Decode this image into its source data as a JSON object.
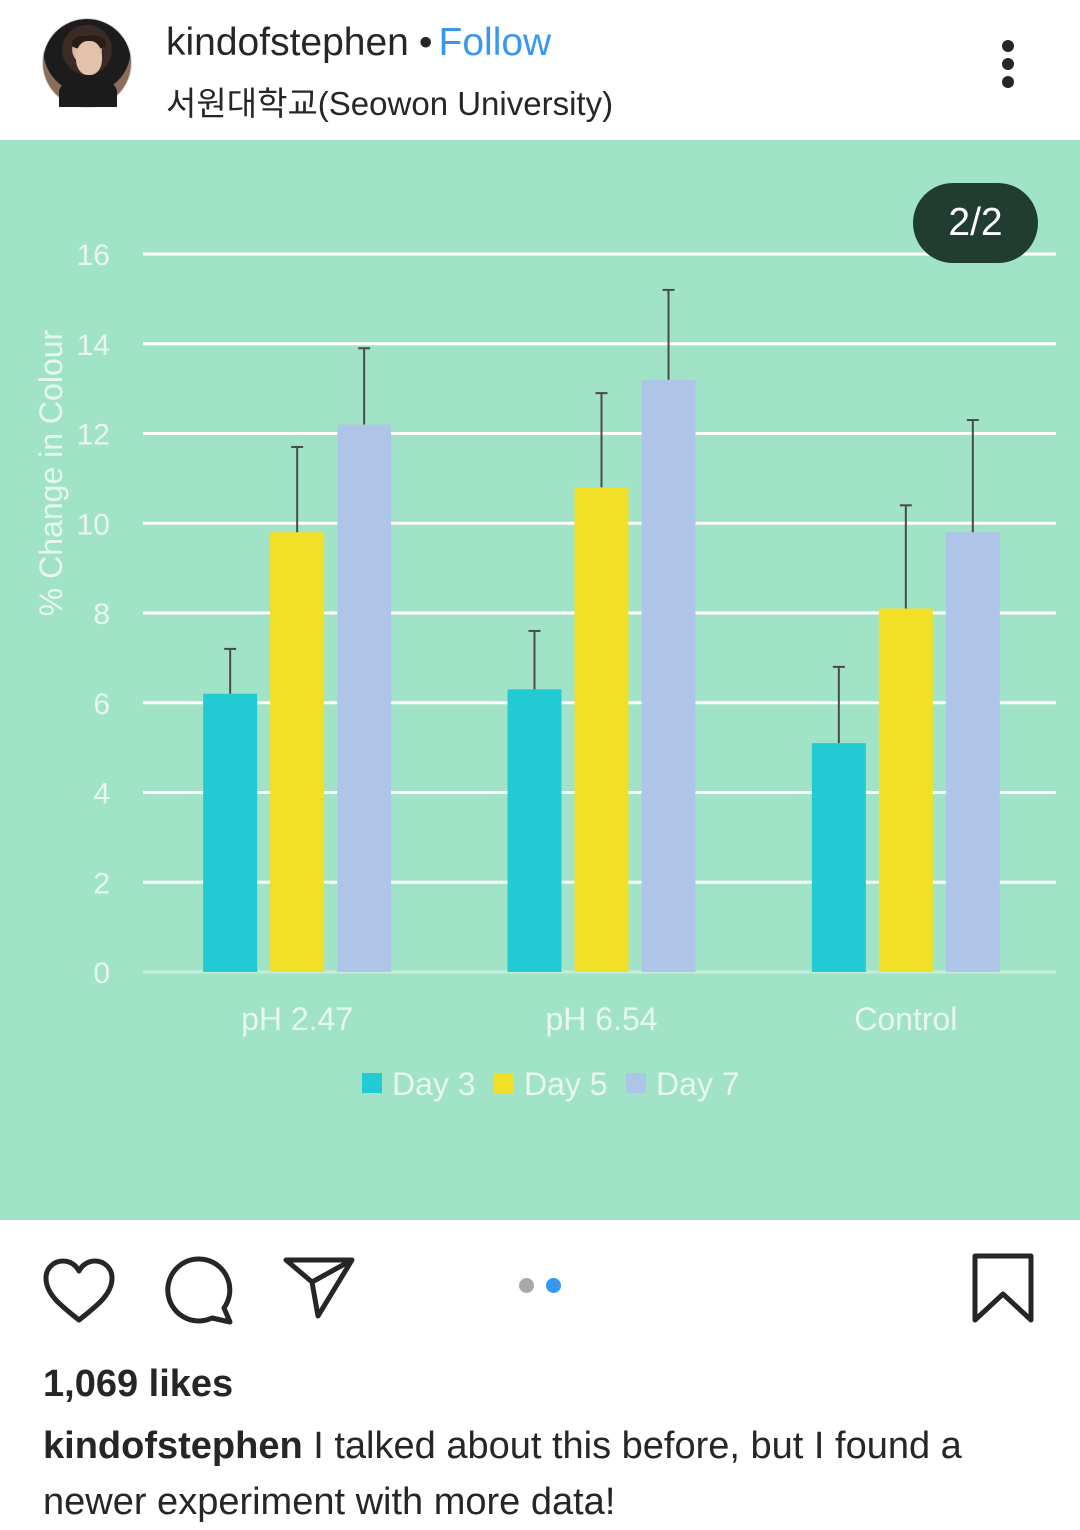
{
  "post": {
    "username": "kindofstephen",
    "separator": "•",
    "follow_label": "Follow",
    "location": "서원대학교(Seowon University)",
    "counter": "2/2",
    "likes": "1,069 likes",
    "caption_user": "kindofstephen",
    "caption_text": "I talked about this before, but I found a newer experiment with more data!"
  },
  "icons": {
    "more": "more-vertical-icon",
    "like": "heart-icon",
    "comment": "comment-icon",
    "share": "send-icon",
    "save": "bookmark-icon"
  },
  "carousel": {
    "total": 2,
    "active": 2,
    "active_color": "#3897f0",
    "inactive_color": "#a8a8a8"
  },
  "colors": {
    "background": "#a1e3c7",
    "follow": "#3897f0"
  },
  "chart_data": {
    "type": "bar",
    "title": "",
    "xlabel": "",
    "ylabel": "% Change in Colour",
    "ylim": [
      0,
      16
    ],
    "yticks": [
      0,
      2,
      4,
      6,
      8,
      10,
      12,
      14,
      16
    ],
    "grid": true,
    "legend_position": "bottom",
    "categories": [
      "pH 2.47",
      "pH 6.54",
      "Control"
    ],
    "series": [
      {
        "name": "Day 3",
        "color": "#22cbd3",
        "values": [
          6.2,
          6.3,
          5.1
        ],
        "errors": [
          1.0,
          1.3,
          1.7
        ]
      },
      {
        "name": "Day 5",
        "color": "#f1df28",
        "values": [
          9.8,
          10.8,
          8.1
        ],
        "errors": [
          1.9,
          2.1,
          2.3
        ]
      },
      {
        "name": "Day 7",
        "color": "#aec5e8",
        "values": [
          12.2,
          13.2,
          9.8
        ],
        "errors": [
          1.7,
          2.0,
          2.5
        ]
      }
    ]
  }
}
